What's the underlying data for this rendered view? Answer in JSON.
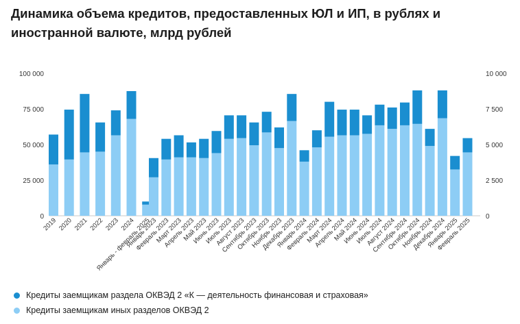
{
  "chart_data": {
    "type": "bar",
    "stacked": true,
    "title": "Динамика объема кредитов, предоставленных ЮЛ и ИП, в рублях и иностранной валюте, млрд рублей",
    "y_left": {
      "ticks": [
        "0",
        "25 000",
        "50 000",
        "75 000",
        "100 000"
      ],
      "range": [
        0,
        100000
      ]
    },
    "y_right": {
      "ticks": [
        "0",
        "2 500",
        "5 000",
        "7 500",
        "10 000"
      ],
      "range": [
        0,
        10000
      ]
    },
    "groups": [
      {
        "axis": "left",
        "categories": [
          "2019",
          "2020",
          "2021",
          "2022",
          "2023",
          "2024",
          "Январь - февраль 2025"
        ]
      },
      {
        "axis": "right",
        "categories": [
          "Январь 2023",
          "Февраль 2023",
          "Март 2023",
          "Апрель 2023",
          "Май 2023",
          "Июнь 2023",
          "Июль 2023",
          "Август 2023",
          "Сентябрь 2023",
          "Октябрь 2023",
          "Ноябрь 2023",
          "Декабрь 2023",
          "Январь 2024",
          "Февраль 2024",
          "Март 2024",
          "Апрель 2024",
          "Май 2024",
          "Июнь 2024",
          "Июль 2024",
          "Август 2024",
          "Сентябрь 2024",
          "Октябрь 2024",
          "Ноябрь 2024",
          "Декабрь 2024",
          "Январь 2025",
          "Февраль 2025"
        ]
      }
    ],
    "series": [
      {
        "name": "Кредиты заемщикам иных разделов ОКВЭД 2",
        "color": "#8dcdf5",
        "group_values": [
          [
            36000,
            39500,
            44500,
            45000,
            56500,
            68000,
            7800
          ],
          [
            2700,
            3950,
            4100,
            4100,
            4050,
            4400,
            5400,
            5450,
            4950,
            5850,
            4750,
            6650,
            3800,
            4800,
            5550,
            5650,
            5650,
            5750,
            6350,
            6100,
            6350,
            6450,
            4900,
            6850,
            3250,
            4450
          ]
        ]
      },
      {
        "name": "Кредиты заемщикам раздела ОКВЭД 2 «К — деятельность финансовая и страховая»",
        "color": "#1a8ed0",
        "group_values": [
          [
            21000,
            35000,
            41000,
            20500,
            17500,
            19500,
            2200
          ],
          [
            1350,
            1450,
            1550,
            1050,
            1350,
            1550,
            1650,
            1600,
            1600,
            1450,
            1450,
            1900,
            800,
            1200,
            2450,
            1800,
            1800,
            1300,
            1450,
            1500,
            1600,
            2350,
            1200,
            1950,
            950,
            1000
          ]
        ]
      }
    ],
    "legend": [
      {
        "label": "Кредиты заемщикам раздела ОКВЭД 2 «К — деятельность финансовая и страховая»",
        "color": "#1a8ed0"
      },
      {
        "label": "Кредиты заемщикам иных разделов ОКВЭД 2",
        "color": "#8dcdf5"
      }
    ]
  }
}
